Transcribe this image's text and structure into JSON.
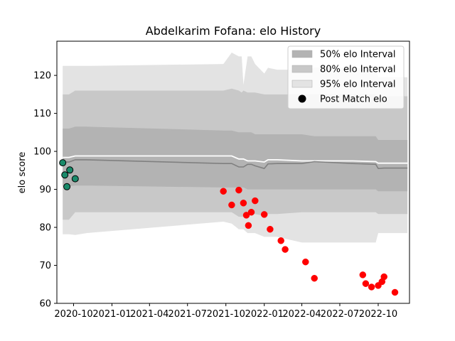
{
  "chart_data": {
    "type": "line",
    "title": "Abdelkarim Fofana: elo History",
    "xlabel": "",
    "ylabel": "elo score",
    "ylim": [
      60,
      129
    ],
    "xlim": [
      "2020-08-22",
      "2022-12-15"
    ],
    "y_ticks": [
      60,
      70,
      80,
      90,
      100,
      110,
      120
    ],
    "x_ticks": [
      {
        "date": "2020-10-01",
        "label": "2020-10"
      },
      {
        "date": "2021-01-01",
        "label": "2021-01"
      },
      {
        "date": "2021-04-01",
        "label": "2021-04"
      },
      {
        "date": "2021-07-01",
        "label": "2021-07"
      },
      {
        "date": "2021-10-01",
        "label": "2021-10"
      },
      {
        "date": "2022-01-01",
        "label": "2022-01"
      },
      {
        "date": "2022-04-01",
        "label": "2022-04"
      },
      {
        "date": "2022-07-01",
        "label": "2022-07"
      },
      {
        "date": "2022-10-01",
        "label": "2022-10"
      }
    ],
    "legend": {
      "placement": "top-right",
      "entries": [
        {
          "label": "50% elo Interval",
          "kind": "patch",
          "color": "#b3b3b3"
        },
        {
          "label": "80% elo Interval",
          "kind": "patch",
          "color": "#c8c8c8"
        },
        {
          "label": "95% elo Interval",
          "kind": "patch",
          "color": "#e3e3e3"
        },
        {
          "label": "Post Match elo",
          "kind": "marker",
          "color": "#000000"
        }
      ]
    },
    "bands": {
      "dates": [
        "2020-09-05",
        "2020-09-20",
        "2020-10-05",
        "2020-11-01",
        "2021-09-25",
        "2021-10-15",
        "2021-11-01",
        "2021-11-08",
        "2021-11-12",
        "2021-11-22",
        "2021-12-01",
        "2021-12-10",
        "2022-01-01",
        "2022-01-10",
        "2022-02-01",
        "2022-04-01",
        "2022-05-01",
        "2022-08-01",
        "2022-09-25",
        "2022-10-01",
        "2022-10-15",
        "2022-12-10"
      ],
      "q95_hi": [
        122.5,
        122.5,
        122.5,
        122.5,
        123,
        126,
        125,
        125,
        117.5,
        125,
        125,
        123,
        120.5,
        122,
        121.5,
        121.5,
        122,
        122,
        121.5,
        119.5,
        119.5,
        119.5
      ],
      "q80_hi": [
        115,
        115,
        116,
        116,
        116,
        116.5,
        116,
        115.5,
        116,
        115.5,
        115.5,
        115.5,
        115,
        115,
        115,
        115,
        115,
        115,
        115,
        114.5,
        114.5,
        114.5
      ],
      "q50_hi": [
        106,
        106,
        106.5,
        106.5,
        105.5,
        105.5,
        105,
        105,
        105,
        105,
        105,
        104.5,
        104.5,
        104.5,
        104.5,
        104.5,
        104,
        104,
        104,
        103,
        103,
        103
      ],
      "mean": [
        98.4,
        98.4,
        98.8,
        98.8,
        98.8,
        98.8,
        98,
        98,
        98,
        97.5,
        97.5,
        97.5,
        97.2,
        97.8,
        97.8,
        97.5,
        97.5,
        97.5,
        97.3,
        96.9,
        96.9,
        96.9
      ],
      "median": [
        97.2,
        97.2,
        97.8,
        97.8,
        96.8,
        96.8,
        95.9,
        95.9,
        95.9,
        96.6,
        96.6,
        96.2,
        95.5,
        96.7,
        96.8,
        96.8,
        97.3,
        96.8,
        96.6,
        95.5,
        95.6,
        95.6
      ],
      "q50_lo": [
        90.8,
        90.8,
        91,
        91,
        90.5,
        90.5,
        90.5,
        90.5,
        90.5,
        90,
        90,
        90,
        90,
        90,
        90,
        90,
        90,
        90,
        90,
        89.5,
        89.5,
        89.5
      ],
      "q80_lo": [
        82,
        82,
        84,
        84,
        84,
        84,
        82.8,
        82.8,
        82.8,
        83.5,
        83.5,
        83.5,
        83,
        83.5,
        83.5,
        84,
        84,
        84,
        84,
        83.5,
        83.5,
        83.5
      ],
      "q95_lo": [
        78.2,
        78.2,
        78,
        78.5,
        81.5,
        81,
        79.5,
        79.5,
        79.5,
        78.5,
        78.5,
        78.5,
        77.5,
        77.5,
        77.5,
        76,
        76,
        76,
        76,
        78.5,
        78.5,
        78.5
      ]
    },
    "series": [
      {
        "name": "",
        "color": "#1a8a6a",
        "edge": "#000000",
        "points": [
          {
            "x": "2020-09-05",
            "y": 97
          },
          {
            "x": "2020-09-10",
            "y": 93.8
          },
          {
            "x": "2020-09-15",
            "y": 90.7
          },
          {
            "x": "2020-09-22",
            "y": 95.1
          },
          {
            "x": "2020-10-05",
            "y": 92.8
          }
        ]
      },
      {
        "name": "",
        "color": "#ff0000",
        "edge": "#ff0000",
        "points": [
          {
            "x": "2021-09-25",
            "y": 89.5
          },
          {
            "x": "2021-10-15",
            "y": 85.9
          },
          {
            "x": "2021-11-01",
            "y": 89.8
          },
          {
            "x": "2021-11-12",
            "y": 86.4
          },
          {
            "x": "2021-11-19",
            "y": 83.2
          },
          {
            "x": "2021-11-24",
            "y": 80.5
          },
          {
            "x": "2021-12-01",
            "y": 84
          },
          {
            "x": "2021-12-10",
            "y": 87
          },
          {
            "x": "2022-01-01",
            "y": 83.4
          },
          {
            "x": "2022-01-15",
            "y": 79.5
          },
          {
            "x": "2022-02-10",
            "y": 76.5
          },
          {
            "x": "2022-02-20",
            "y": 74.2
          },
          {
            "x": "2022-04-10",
            "y": 70.9
          },
          {
            "x": "2022-05-01",
            "y": 66.6
          },
          {
            "x": "2022-08-25",
            "y": 67.5
          },
          {
            "x": "2022-09-01",
            "y": 65.2
          },
          {
            "x": "2022-09-15",
            "y": 64.3
          },
          {
            "x": "2022-10-01",
            "y": 64.7
          },
          {
            "x": "2022-10-10",
            "y": 65.7
          },
          {
            "x": "2022-10-15",
            "y": 67
          },
          {
            "x": "2022-11-10",
            "y": 62.9
          }
        ]
      }
    ]
  }
}
